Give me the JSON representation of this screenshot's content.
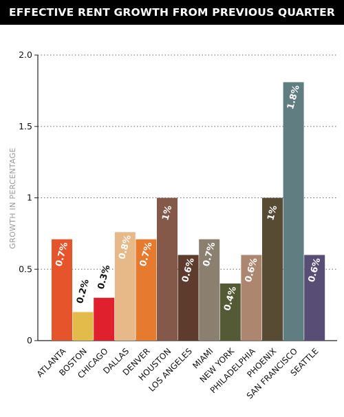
{
  "chart_data": {
    "type": "bar",
    "title": "EFFECTIVE RENT GROWTH FROM PREVIOUS QUARTER",
    "ylabel": "GROWTH IN PERCENTAGE",
    "xlabel": "",
    "ylim": [
      0,
      2.0
    ],
    "yticks": [
      {
        "value": 0,
        "label": "0"
      },
      {
        "value": 0.5,
        "label": "0.5"
      },
      {
        "value": 1,
        "label": "1"
      },
      {
        "value": 1.5,
        "label": "1.5"
      },
      {
        "value": 2.0,
        "label": "2.0"
      }
    ],
    "grid": "horizontal dotted",
    "categories": [
      "ATLANTA",
      "BOSTON",
      "CHICAGO",
      "DALLAS",
      "DENVER",
      "HOUSTON",
      "LOS ANGELES",
      "MIAMI",
      "NEW YORK",
      "PHILADELPHIA",
      "PHOENIX",
      "SAN FRANCISCO",
      "SEATTLE"
    ],
    "values": [
      0.71,
      0.2,
      0.3,
      0.76,
      0.71,
      1.0,
      0.6,
      0.71,
      0.4,
      0.6,
      1.0,
      1.81,
      0.6
    ],
    "data_labels": [
      "0.7%",
      "0.2%",
      "0.3%",
      "0.8%",
      "0.7%",
      "1%",
      "0.6%",
      "0.7%",
      "0.4%",
      "0.6%",
      "1%",
      "1.8%",
      "0.6%"
    ],
    "colors": [
      "#e5542a",
      "#e3bb4a",
      "#e0202d",
      "#e7b888",
      "#e67a2e",
      "#84594a",
      "#5e3b2d",
      "#8b8070",
      "#545a35",
      "#ad8670",
      "#574c33",
      "#607d82",
      "#584d74"
    ],
    "label_colors": [
      "#ffffff",
      "#111111",
      "#111111",
      "#ffffff",
      "#ffffff",
      "#ffffff",
      "#ffffff",
      "#ffffff",
      "#ffffff",
      "#ffffff",
      "#ffffff",
      "#ffffff",
      "#ffffff"
    ]
  }
}
